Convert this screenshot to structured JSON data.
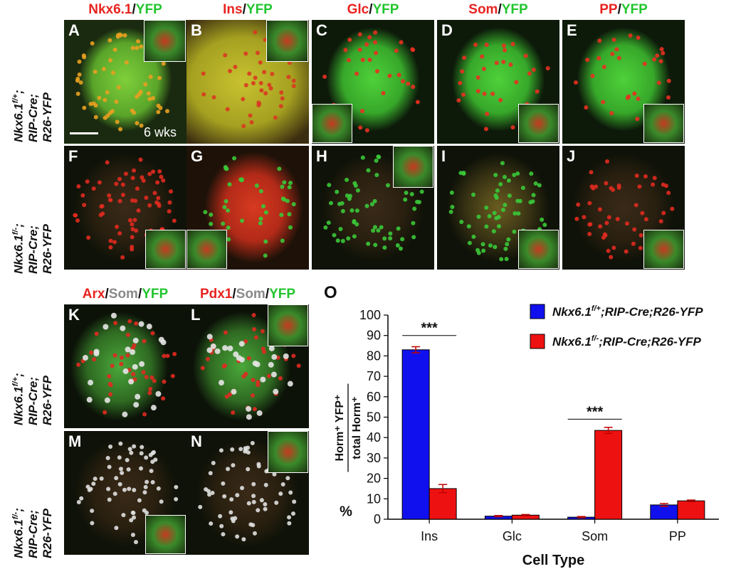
{
  "figure": {
    "top_titles": [
      {
        "parts": [
          {
            "t": "Nkx6.1",
            "c": "red"
          },
          {
            "t": "/",
            "c": "black"
          },
          {
            "t": "YFP",
            "c": "green"
          }
        ]
      },
      {
        "parts": [
          {
            "t": "Ins",
            "c": "red"
          },
          {
            "t": "/",
            "c": "black"
          },
          {
            "t": "YFP",
            "c": "green"
          }
        ]
      },
      {
        "parts": [
          {
            "t": "Glc",
            "c": "red"
          },
          {
            "t": "/",
            "c": "black"
          },
          {
            "t": "YFP",
            "c": "green"
          }
        ]
      },
      {
        "parts": [
          {
            "t": "Som",
            "c": "red"
          },
          {
            "t": "/",
            "c": "black"
          },
          {
            "t": "YFP",
            "c": "green"
          }
        ]
      },
      {
        "parts": [
          {
            "t": "PP",
            "c": "red"
          },
          {
            "t": "/",
            "c": "black"
          },
          {
            "t": "YFP",
            "c": "green"
          }
        ]
      }
    ],
    "bottom_titles": [
      {
        "parts": [
          {
            "t": "Arx",
            "c": "red"
          },
          {
            "t": "/",
            "c": "black"
          },
          {
            "t": "Som",
            "c": "gray"
          },
          {
            "t": "/",
            "c": "black"
          },
          {
            "t": "YFP",
            "c": "green"
          }
        ]
      },
      {
        "parts": [
          {
            "t": "Pdx1",
            "c": "red"
          },
          {
            "t": "/",
            "c": "black"
          },
          {
            "t": "Som",
            "c": "gray"
          },
          {
            "t": "/",
            "c": "black"
          },
          {
            "t": "YFP",
            "c": "green"
          }
        ]
      }
    ],
    "row_labels": {
      "control": {
        "gene": "Nkx6.1",
        "sup": "f/+",
        "rest1": ";",
        "line2": "RIP-Cre;",
        "line3": "R26-YFP"
      },
      "mutant": {
        "gene": "Nkx6.1",
        "sup": "f/-",
        "rest1": ";",
        "line2": "RIP-Cre;",
        "line3": "R26-YFP"
      }
    },
    "panel_letters": [
      "A",
      "B",
      "C",
      "D",
      "E",
      "F",
      "G",
      "H",
      "I",
      "J",
      "K",
      "L",
      "M",
      "N"
    ],
    "age_label": "6 wks",
    "chart_letter": "O"
  },
  "chart_data": {
    "type": "bar",
    "categories": [
      "Ins",
      "Glc",
      "Som",
      "PP"
    ],
    "series": [
      {
        "name": "Nkx6.1f/+;RIP-Cre;R26-YFP",
        "name_gene": "Nkx6.1",
        "name_sup": "f/+",
        "name_rest": ";RIP-Cre;R26-YFP",
        "color": "#1010ee",
        "values": [
          83,
          1.5,
          1,
          7
        ],
        "errors": [
          1.5,
          0.3,
          0.3,
          0.7
        ]
      },
      {
        "name": "Nkx6.1f/-;RIP-Cre;R26-YFP",
        "name_gene": "Nkx6.1",
        "name_sup": "f/-",
        "name_rest": ";RIP-Cre;R26-YFP",
        "color": "#ee1111",
        "values": [
          15,
          2,
          43.5,
          9
        ],
        "errors": [
          2,
          0.3,
          1.5,
          0.4
        ]
      }
    ],
    "ylim": [
      0,
      100
    ],
    "yticks": [
      0,
      10,
      20,
      30,
      40,
      50,
      60,
      70,
      80,
      90,
      100
    ],
    "xlabel": "Cell Type",
    "ylabel_prefix": "%",
    "ylabel_num": "Horm⁺ YFP⁺",
    "ylabel_den": "total Horm⁺",
    "significance": [
      {
        "category": "Ins",
        "label": "***",
        "y": 90
      },
      {
        "category": "Som",
        "label": "***",
        "y": 49
      }
    ],
    "legend_position": "top-right",
    "grid": false
  }
}
